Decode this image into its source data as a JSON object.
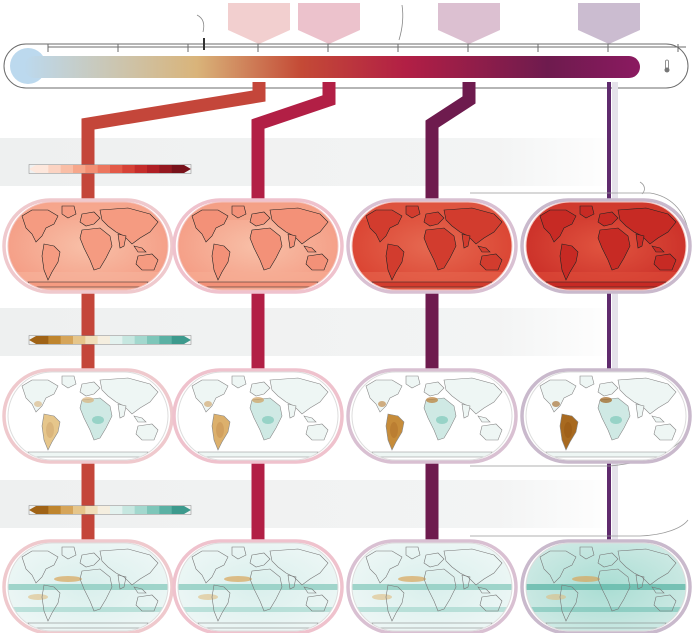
{
  "colors": {
    "thermo_start": "#bcd9ee",
    "thermo_mid1": "#d9b47a",
    "thermo_mid2": "#c44a36",
    "thermo_mid3": "#b21f45",
    "thermo_end": "#8b1a60",
    "level_1": "#c4463a",
    "level_2": "#b21f45",
    "level_3": "#6e1b4e",
    "level_4": "#5f2a6d",
    "band_bg": "#f2f3f3",
    "ocean_glow_1": "#f1cdd3",
    "ocean_glow_4": "#cbb9cd"
  },
  "warming_levels": [
    {
      "id": "level-1",
      "tag_color": "#f2cfcf"
    },
    {
      "id": "level-2",
      "tag_color": "#ecc2cc"
    },
    {
      "id": "level-3",
      "tag_color": "#dcc0d1"
    },
    {
      "id": "level-4",
      "tag_color": "#cbbcd0"
    }
  ],
  "icons": {
    "thermometer": "thermometer-icon",
    "arrow": "curved-arrow-icon"
  },
  "rows": [
    {
      "id": "temperature",
      "legend": "red-sequential",
      "map_palette": "reds"
    },
    {
      "id": "soil-moisture",
      "legend": "brown-teal-diverging",
      "map_palette": "brown-teal"
    },
    {
      "id": "precipitation",
      "legend": "brown-teal-diverging",
      "map_palette": "teal"
    }
  ]
}
